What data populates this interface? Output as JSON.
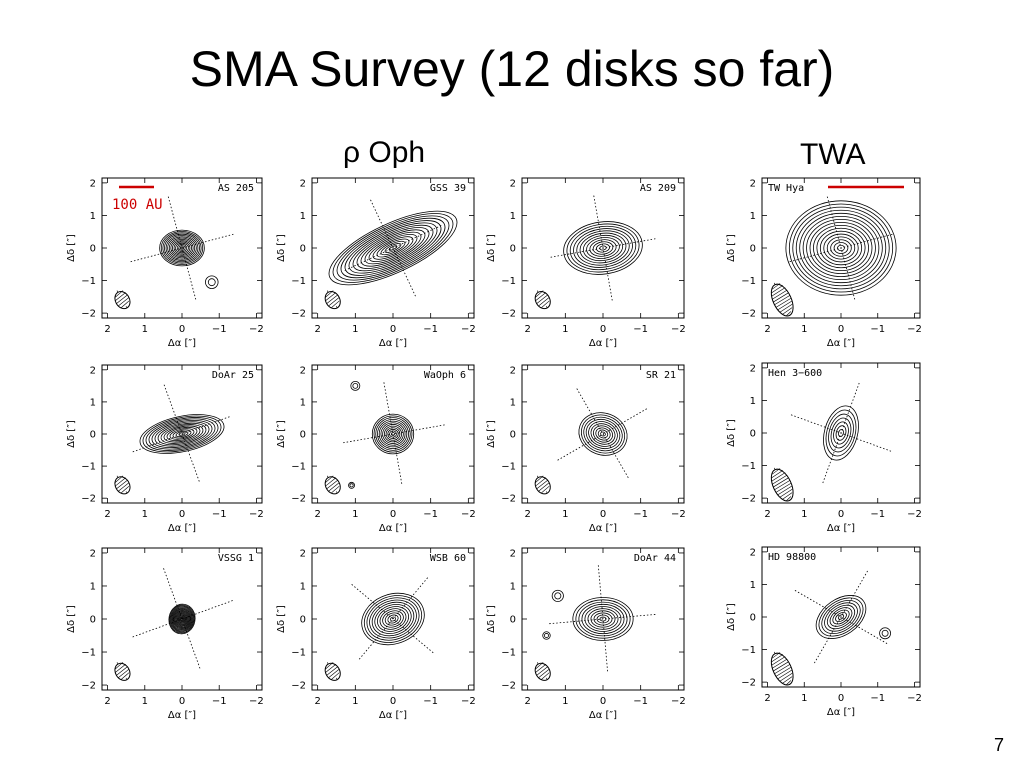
{
  "slide": {
    "title": "SMA Survey (12 disks so far)",
    "group_oph": "ρ Oph",
    "group_twa": "TWA",
    "page_number": "7"
  },
  "scale_bar": {
    "label": "100 AU",
    "color": "#cc0000"
  },
  "axes": {
    "xlabel": "Δα [″]",
    "ylabel": "Δδ [″]",
    "xticks": [
      "2",
      "1",
      "0",
      "−1",
      "−2"
    ],
    "yticks": [
      "2",
      "1",
      "0",
      "−1",
      "−2"
    ]
  },
  "panels": [
    {
      "name": "AS 205",
      "group": "ρ Oph",
      "row": 0,
      "col": 0
    },
    {
      "name": "GSS 39",
      "group": "ρ Oph",
      "row": 0,
      "col": 1
    },
    {
      "name": "AS 209",
      "group": "ρ Oph",
      "row": 0,
      "col": 2
    },
    {
      "name": "DoAr 25",
      "group": "ρ Oph",
      "row": 1,
      "col": 0
    },
    {
      "name": "WaOph 6",
      "group": "ρ Oph",
      "row": 1,
      "col": 1
    },
    {
      "name": "SR 21",
      "group": "ρ Oph",
      "row": 1,
      "col": 2
    },
    {
      "name": "VSSG 1",
      "group": "ρ Oph",
      "row": 2,
      "col": 0
    },
    {
      "name": "WSB 60",
      "group": "ρ Oph",
      "row": 2,
      "col": 1
    },
    {
      "name": "DoAr 44",
      "group": "ρ Oph",
      "row": 2,
      "col": 2
    },
    {
      "name": "TW Hya",
      "group": "TWA",
      "row": 0,
      "col": 3
    },
    {
      "name": "Hen 3−600",
      "group": "TWA",
      "row": 1,
      "col": 3
    },
    {
      "name": "HD 98800",
      "group": "TWA",
      "row": 2,
      "col": 3
    }
  ]
}
